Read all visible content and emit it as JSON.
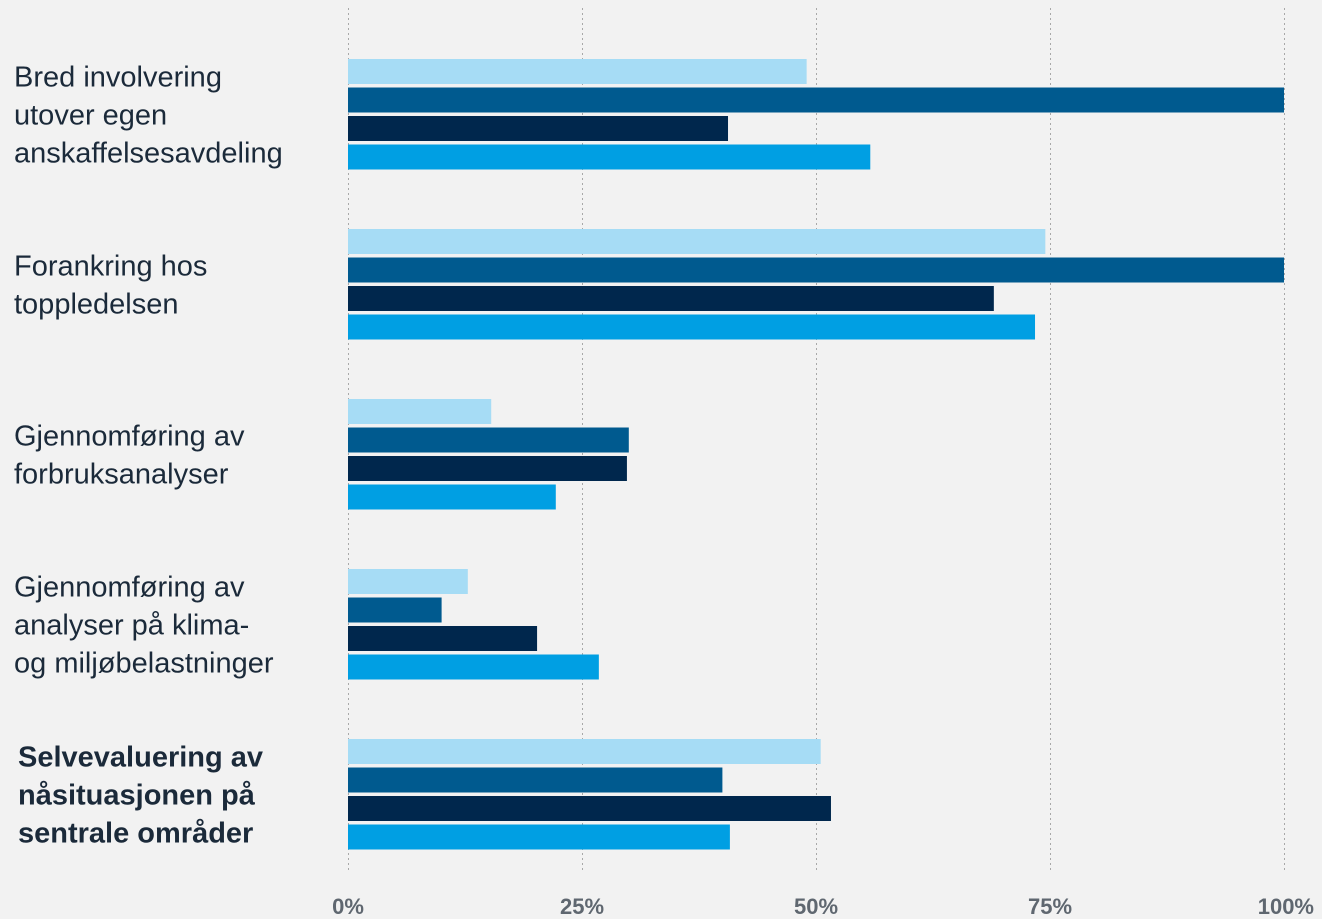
{
  "chart_data": {
    "type": "bar",
    "orientation": "horizontal",
    "categories": [
      {
        "lines": [
          "Bred involvering",
          "utover egen",
          "anskaffelsesavdeling"
        ],
        "bold": false
      },
      {
        "lines": [
          "Forankring hos",
          "toppledelsen"
        ],
        "bold": false
      },
      {
        "lines": [
          "Gjennomføring av",
          "forbruksanalyser"
        ],
        "bold": false
      },
      {
        "lines": [
          "Gjennomføring av",
          "analyser på klima-",
          "og miljøbelastninger"
        ],
        "bold": false
      },
      {
        "lines": [
          "Selvevaluering av",
          "nåsituasjonen på",
          "sentrale områder"
        ],
        "bold": true
      }
    ],
    "series": [
      {
        "color": "#a6dcf5",
        "values": [
          49,
          74.5,
          15.3,
          12.8,
          50.5
        ]
      },
      {
        "color": "#005a8f",
        "values": [
          100,
          100,
          30,
          10,
          40
        ]
      },
      {
        "color": "#00274d",
        "values": [
          40.6,
          69,
          29.8,
          20.2,
          51.6
        ]
      },
      {
        "color": "#009fe3",
        "values": [
          55.8,
          73.4,
          22.2,
          26.8,
          40.8
        ]
      }
    ],
    "xlim": [
      0,
      100
    ],
    "ticks": [
      0,
      25,
      50,
      75,
      100
    ],
    "tick_labels": [
      "0%",
      "25%",
      "50%",
      "75%",
      "100%"
    ],
    "grid": true,
    "legend": "none",
    "title": "",
    "xlabel": "",
    "ylabel": ""
  }
}
